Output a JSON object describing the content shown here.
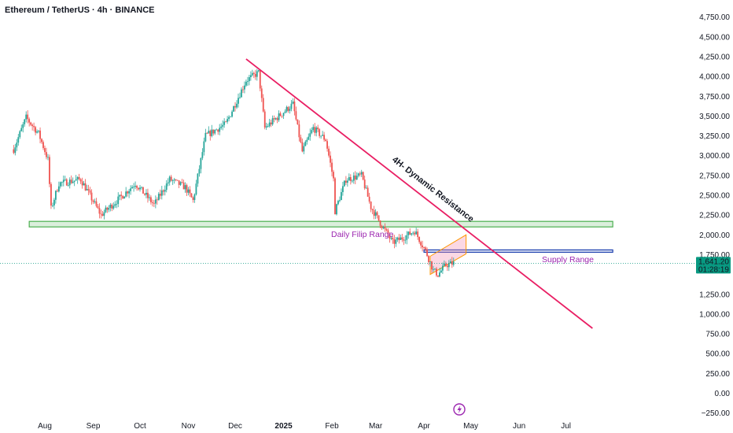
{
  "header": {
    "title": "Ethereum / TetherUS · 4h · BINANCE"
  },
  "colors": {
    "up": "#26a69a",
    "down": "#ef5350",
    "resistance": "#e91e63",
    "flip_zone": "#4caf50",
    "supply_zone": "#1e40af",
    "channel": "#f48fb1",
    "channel_border": "#ff9800",
    "annotation": "#9c27b0",
    "price_tag": "#089981"
  },
  "chart_data": {
    "type": "candlestick",
    "title": "Ethereum / TetherUS · 4h · BINANCE",
    "y_ticks": [
      4750,
      4500,
      4250,
      4000,
      3750,
      3500,
      3250,
      3000,
      2750,
      2500,
      2250,
      2000,
      1750,
      1250,
      1000,
      750,
      500,
      250,
      0,
      -250
    ],
    "y_tick_labels": [
      "4,750.00",
      "4,500.00",
      "4,250.00",
      "4,000.00",
      "3,750.00",
      "3,500.00",
      "3,250.00",
      "3,000.00",
      "2,750.00",
      "2,500.00",
      "2,250.00",
      "2,000.00",
      "1,750.00",
      "1,250.00",
      "1,000.00",
      "750.00",
      "500.00",
      "250.00",
      "0.00",
      "−250.00"
    ],
    "ylim": [
      -250,
      4750
    ],
    "x_tick_labels": [
      "Aug",
      "Sep",
      "Oct",
      "Nov",
      "Dec",
      "2025",
      "Feb",
      "Mar",
      "Apr",
      "May",
      "Jun",
      "Jul"
    ],
    "x_tick_dates": [
      "2024-08-01",
      "2024-09-01",
      "2024-10-01",
      "2024-11-01",
      "2024-12-01",
      "2025-01-01",
      "2025-02-01",
      "2025-03-01",
      "2025-04-01",
      "2025-05-01",
      "2025-06-01",
      "2025-07-01"
    ],
    "price_path": [
      [
        "2024-07-12",
        3080
      ],
      [
        "2024-07-20",
        3480
      ],
      [
        "2024-07-28",
        3280
      ],
      [
        "2024-08-03",
        2950
      ],
      [
        "2024-08-05",
        2330
      ],
      [
        "2024-08-10",
        2650
      ],
      [
        "2024-08-24",
        2700
      ],
      [
        "2024-09-06",
        2250
      ],
      [
        "2024-09-20",
        2500
      ],
      [
        "2024-09-28",
        2650
      ],
      [
        "2024-10-10",
        2380
      ],
      [
        "2024-10-20",
        2700
      ],
      [
        "2024-10-30",
        2600
      ],
      [
        "2024-11-04",
        2430
      ],
      [
        "2024-11-12",
        3250
      ],
      [
        "2024-11-25",
        3400
      ],
      [
        "2024-12-08",
        3950
      ],
      [
        "2024-12-16",
        4050
      ],
      [
        "2024-12-20",
        3350
      ],
      [
        "2025-01-07",
        3650
      ],
      [
        "2025-01-13",
        3050
      ],
      [
        "2025-01-20",
        3350
      ],
      [
        "2025-01-28",
        3200
      ],
      [
        "2025-02-02",
        2700
      ],
      [
        "2025-02-03",
        2300
      ],
      [
        "2025-02-10",
        2700
      ],
      [
        "2025-02-20",
        2750
      ],
      [
        "2025-02-26",
        2350
      ],
      [
        "2025-03-04",
        2150
      ],
      [
        "2025-03-12",
        1900
      ],
      [
        "2025-03-20",
        1980
      ],
      [
        "2025-03-26",
        2050
      ],
      [
        "2025-04-02",
        1800
      ],
      [
        "2025-04-07",
        1550
      ],
      [
        "2025-04-10",
        1500
      ],
      [
        "2025-04-15",
        1620
      ],
      [
        "2025-04-20",
        1641.2
      ]
    ],
    "last_price": "1,641.20",
    "countdown": "01:28:19",
    "last_price_value": 1641.2,
    "annotations": {
      "resistance_label": "4H- Dynamic Resistance",
      "flip_label": "Daily Filip Range",
      "supply_label": "Supply Range"
    },
    "resistance_line": {
      "from": [
        "2024-12-08",
        4220
      ],
      "to": [
        "2025-07-18",
        820
      ]
    },
    "flip_zone": {
      "from": "2024-07-22",
      "to": "2025-07-31",
      "low": 2100,
      "high": 2170
    },
    "supply_zone": {
      "from": "2025-04-01",
      "to": "2025-07-31",
      "low": 1780,
      "high": 1810
    },
    "channel": [
      [
        "2025-04-05",
        1500
      ],
      [
        "2025-04-05",
        1730
      ],
      [
        "2025-04-28",
        2000
      ],
      [
        "2025-04-28",
        1760
      ]
    ]
  }
}
